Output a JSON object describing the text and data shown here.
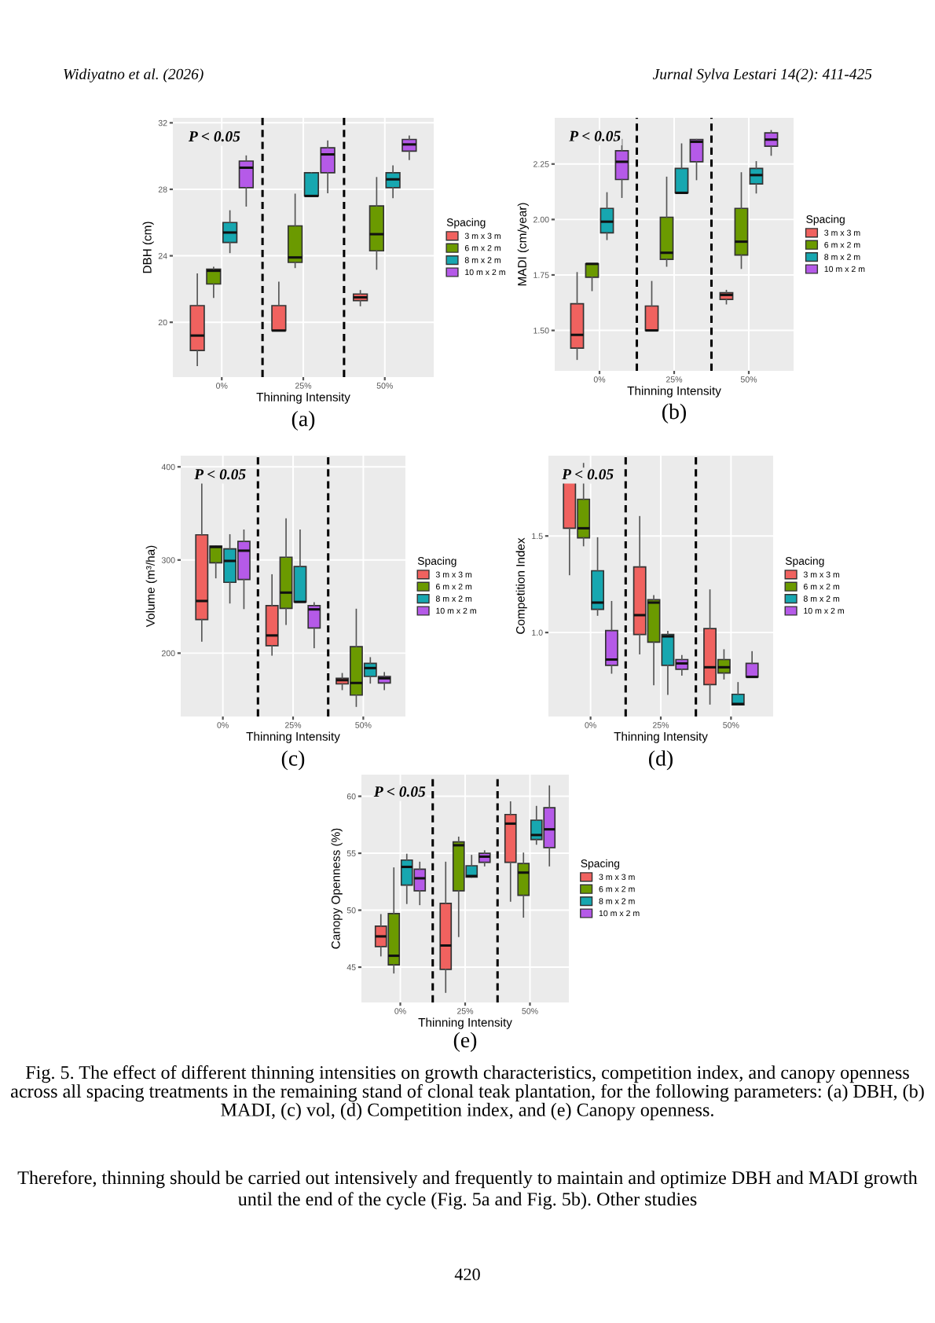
{
  "chart_data": [
    {
      "type": "box",
      "xlabel": "Thinning Intensity",
      "ylabel": "DBH (cm)",
      "legend_title": "Spacing",
      "legend": "right",
      "grid": true,
      "categories": [
        "0%",
        "25%",
        "50%"
      ],
      "ylim": [
        16.7,
        32.3
      ],
      "yticks": [
        20,
        24,
        28,
        32
      ],
      "annotations": [
        "P < 0.05",
        "(a)",
        "Widiyatno et al. (2026)",
        "Jurnal Sylva Lestari 14(2): 411-425"
      ],
      "series": [
        {
          "name": "3 m x 3 m",
          "color": "#f0625f",
          "boxes": [
            {
              "low": 17.4,
              "q1": 18.3,
              "median": 19.2,
              "q3": 21.0,
              "high": 22.9
            },
            {
              "low": 19.5,
              "q1": 19.5,
              "median": 19.5,
              "q3": 21.0,
              "high": 22.4
            },
            {
              "low": 21.0,
              "q1": 21.3,
              "median": 21.5,
              "q3": 21.7,
              "high": 21.9
            }
          ]
        },
        {
          "name": "6 m x 2 m",
          "color": "#6b9a00",
          "boxes": [
            {
              "low": 21.5,
              "q1": 22.3,
              "median": 23.1,
              "q3": 23.2,
              "high": 23.3
            },
            {
              "low": 23.3,
              "q1": 23.6,
              "median": 23.9,
              "q3": 25.8,
              "high": 27.7
            },
            {
              "low": 23.2,
              "q1": 24.3,
              "median": 25.3,
              "q3": 27.0,
              "high": 28.7
            }
          ]
        },
        {
          "name": "8 m x 2 m",
          "color": "#17a7b0",
          "boxes": [
            {
              "low": 24.2,
              "q1": 24.8,
              "median": 25.4,
              "q3": 26.0,
              "high": 26.7
            },
            {
              "low": 27.6,
              "q1": 27.6,
              "median": 27.6,
              "q3": 29.0,
              "high": 29.0
            },
            {
              "low": 27.5,
              "q1": 28.1,
              "median": 28.6,
              "q3": 29.0,
              "high": 29.4
            }
          ]
        },
        {
          "name": "10 m x 2 m",
          "color": "#b55ae8",
          "boxes": [
            {
              "low": 27.0,
              "q1": 28.1,
              "median": 29.3,
              "q3": 29.7,
              "high": 30.0
            },
            {
              "low": 27.8,
              "q1": 29.0,
              "median": 30.1,
              "q3": 30.5,
              "high": 30.9
            },
            {
              "low": 29.8,
              "q1": 30.3,
              "median": 30.7,
              "q3": 31.0,
              "high": 31.2
            }
          ]
        }
      ]
    },
    {
      "type": "box",
      "xlabel": "Thinning Intensity",
      "ylabel": "MADI (cm/year)",
      "legend_title": "Spacing",
      "legend": "right",
      "grid": true,
      "categories": [
        "0%",
        "25%",
        "50%"
      ],
      "ylim": [
        1.318,
        2.458
      ],
      "yticks": [
        {
          "value": 1.5,
          "label": "1.50"
        },
        {
          "value": 1.75,
          "label": "1.75"
        },
        {
          "value": 2.0,
          "label": "2.00"
        },
        {
          "value": 2.25,
          "label": "2.25"
        }
      ],
      "annotations": [
        "P < 0.05",
        "(b)"
      ],
      "series": [
        {
          "name": "3 m x 3 m",
          "color": "#f0625f",
          "boxes": [
            {
              "low": 1.37,
              "q1": 1.42,
              "median": 1.48,
              "q3": 1.62,
              "high": 1.76
            },
            {
              "low": 1.5,
              "q1": 1.5,
              "median": 1.5,
              "q3": 1.61,
              "high": 1.72
            },
            {
              "low": 1.62,
              "q1": 1.64,
              "median": 1.66,
              "q3": 1.67,
              "high": 1.68
            }
          ]
        },
        {
          "name": "6 m x 2 m",
          "color": "#6b9a00",
          "boxes": [
            {
              "low": 1.68,
              "q1": 1.74,
              "median": 1.8,
              "q3": 1.8,
              "high": 1.8
            },
            {
              "low": 1.79,
              "q1": 1.82,
              "median": 1.85,
              "q3": 2.01,
              "high": 2.19
            },
            {
              "low": 1.78,
              "q1": 1.84,
              "median": 1.9,
              "q3": 2.05,
              "high": 2.21
            }
          ]
        },
        {
          "name": "8 m x 2 m",
          "color": "#17a7b0",
          "boxes": [
            {
              "low": 1.91,
              "q1": 1.94,
              "median": 1.99,
              "q3": 2.05,
              "high": 2.12
            },
            {
              "low": 2.12,
              "q1": 2.12,
              "median": 2.12,
              "q3": 2.23,
              "high": 2.34
            },
            {
              "low": 2.12,
              "q1": 2.16,
              "median": 2.2,
              "q3": 2.23,
              "high": 2.26
            }
          ]
        },
        {
          "name": "10 m x 2 m",
          "color": "#b55ae8",
          "boxes": [
            {
              "low": 2.1,
              "q1": 2.18,
              "median": 2.26,
              "q3": 2.31,
              "high": 2.36
            },
            {
              "low": 2.18,
              "q1": 2.26,
              "median": 2.35,
              "q3": 2.36,
              "high": 2.36
            },
            {
              "low": 2.29,
              "q1": 2.33,
              "median": 2.36,
              "q3": 2.39,
              "high": 2.4
            }
          ]
        }
      ]
    },
    {
      "type": "box",
      "xlabel": "Thinning Intensity",
      "ylabel": "Volume (m³/ha)",
      "legend_title": "Spacing",
      "legend": "right",
      "grid": true,
      "categories": [
        "0%",
        "25%",
        "50%"
      ],
      "ylim": [
        132,
        412
      ],
      "yticks": [
        200,
        300,
        400
      ],
      "annotations": [
        "P < 0.05",
        "(c)"
      ],
      "series": [
        {
          "name": "3 m x 3 m",
          "color": "#f0625f",
          "boxes": [
            {
              "low": 213,
              "q1": 236,
              "median": 256,
              "q3": 327,
              "high": 398
            },
            {
              "low": 198,
              "q1": 208,
              "median": 219,
              "q3": 251,
              "high": 284
            },
            {
              "low": 161,
              "q1": 167,
              "median": 171,
              "q3": 173,
              "high": 178
            }
          ]
        },
        {
          "name": "6 m x 2 m",
          "color": "#6b9a00",
          "boxes": [
            {
              "low": 281,
              "q1": 297,
              "median": 314,
              "q3": 315,
              "high": 315
            },
            {
              "low": 231,
              "q1": 248,
              "median": 265,
              "q3": 303,
              "high": 344
            },
            {
              "low": 143,
              "q1": 155,
              "median": 168,
              "q3": 207,
              "high": 247
            }
          ]
        },
        {
          "name": "8 m x 2 m",
          "color": "#17a7b0",
          "boxes": [
            {
              "low": 254,
              "q1": 276,
              "median": 299,
              "q3": 312,
              "high": 327
            },
            {
              "low": 255,
              "q1": 255,
              "median": 255,
              "q3": 293,
              "high": 332
            },
            {
              "low": 168,
              "q1": 175,
              "median": 184,
              "q3": 189,
              "high": 195
            }
          ]
        },
        {
          "name": "10 m x 2 m",
          "color": "#b55ae8",
          "boxes": [
            {
              "low": 248,
              "q1": 279,
              "median": 310,
              "q3": 320,
              "high": 332
            },
            {
              "low": 206,
              "q1": 227,
              "median": 247,
              "q3": 251,
              "high": 254
            },
            {
              "low": 161,
              "q1": 168,
              "median": 173,
              "q3": 175,
              "high": 179
            }
          ]
        }
      ]
    },
    {
      "type": "box",
      "xlabel": "Thinning Intensity",
      "ylabel": "Competition Index",
      "legend_title": "Spacing",
      "legend": "right",
      "grid": true,
      "categories": [
        "0%",
        "25%",
        "50%"
      ],
      "ylim": [
        0.565,
        1.916
      ],
      "yticks": [
        {
          "value": 1.0,
          "label": "1.0"
        },
        {
          "value": 1.5,
          "label": "1.5"
        }
      ],
      "annotations": [
        "P < 0.05",
        "(d)"
      ],
      "series": [
        {
          "name": "3 m x 3 m",
          "color": "#f0625f",
          "boxes": [
            {
              "low": 1.3,
              "q1": 1.54,
              "median": 1.78,
              "q3": 1.79,
              "high": 1.79
            },
            {
              "low": 0.89,
              "q1": 0.99,
              "median": 1.09,
              "q3": 1.34,
              "high": 1.6
            },
            {
              "low": 0.63,
              "q1": 0.73,
              "median": 0.82,
              "q3": 1.02,
              "high": 1.22
            }
          ]
        },
        {
          "name": "6 m x 2 m",
          "color": "#6b9a00",
          "boxes": [
            {
              "low": 1.45,
              "q1": 1.49,
              "median": 1.54,
              "q3": 1.69,
              "high": 1.875
            },
            {
              "low": 0.73,
              "q1": 0.95,
              "median": 1.155,
              "q3": 1.17,
              "high": 1.19
            },
            {
              "low": 0.76,
              "q1": 0.79,
              "median": 0.82,
              "q3": 0.86,
              "high": 0.91
            }
          ]
        },
        {
          "name": "8 m x 2 m",
          "color": "#17a7b0",
          "boxes": [
            {
              "low": 1.09,
              "q1": 1.12,
              "median": 1.155,
              "q3": 1.32,
              "high": 1.49
            },
            {
              "low": 0.68,
              "q1": 0.83,
              "median": 0.98,
              "q3": 0.99,
              "high": 1.005
            },
            {
              "low": 0.625,
              "q1": 0.625,
              "median": 0.63,
              "q3": 0.68,
              "high": 0.74
            }
          ]
        },
        {
          "name": "10 m x 2 m",
          "color": "#b55ae8",
          "boxes": [
            {
              "low": 0.79,
              "q1": 0.83,
              "median": 0.86,
              "q3": 1.01,
              "high": 1.16
            },
            {
              "low": 0.78,
              "q1": 0.81,
              "median": 0.84,
              "q3": 0.86,
              "high": 0.88
            },
            {
              "low": 0.77,
              "q1": 0.77,
              "median": 0.77,
              "q3": 0.84,
              "high": 0.9
            }
          ]
        }
      ]
    },
    {
      "type": "box",
      "xlabel": "Thinning Intensity",
      "ylabel": "Canopy Openness (%)",
      "legend_title": "Spacing",
      "legend": "right",
      "grid": true,
      "categories": [
        "0%",
        "25%",
        "50%"
      ],
      "ylim": [
        41.9,
        61.9
      ],
      "yticks": [
        45,
        50,
        55,
        60
      ],
      "annotations": [
        "P < 0.05",
        "(e)",
        "Fig. 5. The effect of different thinning intensities on growth characteristics, competition index, and canopy openness across all spacing treatments in the remaining stand of clonal teak plantation, for the following parameters: (a) DBH, (b) MADI, (c) vol, (d) Competition index, and (e) Canopy openness.",
        "Therefore, thinning should be carried out intensively and frequently to maintain and optimize DBH and MADI growth until the end of the cycle (Fig. 5a and Fig. 5b). Other studies",
        "420"
      ],
      "series": [
        {
          "name": "3 m x 3 m",
          "color": "#f0625f",
          "boxes": [
            {
              "low": 46.0,
              "q1": 46.8,
              "median": 47.7,
              "q3": 48.6,
              "high": 49.6
            },
            {
              "low": 42.8,
              "q1": 44.8,
              "median": 46.9,
              "q3": 50.6,
              "high": 54.2
            },
            {
              "low": 50.8,
              "q1": 54.2,
              "median": 57.6,
              "q3": 58.4,
              "high": 59.5
            }
          ]
        },
        {
          "name": "6 m x 2 m",
          "color": "#6b9a00",
          "boxes": [
            {
              "low": 44.5,
              "q1": 45.2,
              "median": 46.0,
              "q3": 49.7,
              "high": 53.7
            },
            {
              "low": 47.7,
              "q1": 51.7,
              "median": 55.7,
              "q3": 56.0,
              "high": 56.4
            },
            {
              "low": 49.4,
              "q1": 51.3,
              "median": 53.3,
              "q3": 54.1,
              "high": 55.0
            }
          ]
        },
        {
          "name": "8 m x 2 m",
          "color": "#17a7b0",
          "boxes": [
            {
              "low": 50.6,
              "q1": 52.2,
              "median": 53.8,
              "q3": 54.4,
              "high": 54.9
            },
            {
              "low": 52.9,
              "q1": 52.9,
              "median": 53.0,
              "q3": 53.9,
              "high": 54.8
            },
            {
              "low": 55.8,
              "q1": 56.2,
              "median": 56.6,
              "q3": 57.9,
              "high": 59.1
            }
          ]
        },
        {
          "name": "10 m x 2 m",
          "color": "#b55ae8",
          "boxes": [
            {
              "low": 50.5,
              "q1": 51.7,
              "median": 52.8,
              "q3": 53.6,
              "high": 54.2
            },
            {
              "low": 53.9,
              "q1": 54.2,
              "median": 54.7,
              "q3": 55.0,
              "high": 55.2
            },
            {
              "low": 53.9,
              "q1": 55.5,
              "median": 57.1,
              "q3": 59.0,
              "high": 60.9
            }
          ]
        }
      ]
    }
  ]
}
